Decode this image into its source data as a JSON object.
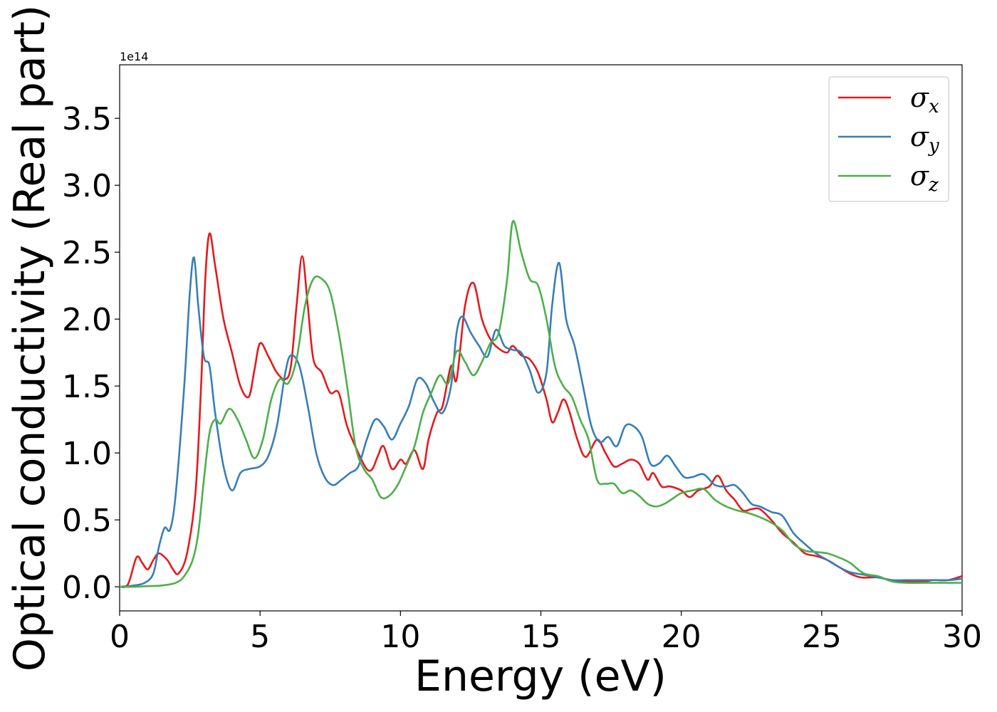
{
  "chart_data": {
    "type": "line",
    "xlabel": "Energy (eV)",
    "ylabel": "Optical conductivity (Real part)",
    "y_offset_text": "1e14",
    "y_scale": 100000000000000.0,
    "xlim": [
      0,
      30
    ],
    "ylim": [
      -0.18,
      3.9
    ],
    "x_ticks": [
      0,
      5,
      10,
      15,
      20,
      25,
      30
    ],
    "x_tick_labels": [
      "0",
      "5",
      "10",
      "15",
      "20",
      "25",
      "30"
    ],
    "y_ticks": [
      0.0,
      0.5,
      1.0,
      1.5,
      2.0,
      2.5,
      3.0,
      3.5
    ],
    "y_tick_labels": [
      "0.0",
      "0.5",
      "1.0",
      "1.5",
      "2.0",
      "2.5",
      "3.0",
      "3.5"
    ],
    "grid": false,
    "legend_position": "top-right",
    "series": [
      {
        "name": "σx",
        "legend_symbol": "σ",
        "legend_sub": "x",
        "color": "#e41a1c",
        "points": [
          [
            0,
            0
          ],
          [
            0.3,
            0.02
          ],
          [
            0.6,
            0.22
          ],
          [
            0.8,
            0.18
          ],
          [
            1.0,
            0.13
          ],
          [
            1.2,
            0.2
          ],
          [
            1.4,
            0.25
          ],
          [
            1.7,
            0.2
          ],
          [
            1.9,
            0.13
          ],
          [
            2.1,
            0.1
          ],
          [
            2.4,
            0.25
          ],
          [
            2.7,
            0.7
          ],
          [
            2.9,
            1.5
          ],
          [
            3.05,
            2.3
          ],
          [
            3.2,
            2.64
          ],
          [
            3.4,
            2.4
          ],
          [
            3.7,
            2.0
          ],
          [
            4.0,
            1.75
          ],
          [
            4.3,
            1.5
          ],
          [
            4.6,
            1.42
          ],
          [
            4.8,
            1.62
          ],
          [
            5.0,
            1.82
          ],
          [
            5.3,
            1.72
          ],
          [
            5.6,
            1.6
          ],
          [
            5.9,
            1.55
          ],
          [
            6.1,
            1.65
          ],
          [
            6.3,
            2.1
          ],
          [
            6.5,
            2.47
          ],
          [
            6.7,
            2.1
          ],
          [
            6.9,
            1.7
          ],
          [
            7.2,
            1.6
          ],
          [
            7.5,
            1.45
          ],
          [
            7.8,
            1.45
          ],
          [
            8.1,
            1.2
          ],
          [
            8.5,
            1.0
          ],
          [
            8.8,
            0.88
          ],
          [
            9.0,
            0.88
          ],
          [
            9.2,
            0.98
          ],
          [
            9.4,
            1.05
          ],
          [
            9.7,
            0.88
          ],
          [
            10.0,
            0.95
          ],
          [
            10.2,
            0.92
          ],
          [
            10.5,
            1.02
          ],
          [
            10.8,
            0.88
          ],
          [
            11.0,
            1.1
          ],
          [
            11.3,
            1.3
          ],
          [
            11.5,
            1.35
          ],
          [
            11.8,
            1.65
          ],
          [
            12.0,
            1.55
          ],
          [
            12.3,
            2.1
          ],
          [
            12.6,
            2.27
          ],
          [
            12.9,
            2.0
          ],
          [
            13.2,
            1.85
          ],
          [
            13.5,
            1.78
          ],
          [
            13.8,
            1.75
          ],
          [
            14.0,
            1.8
          ],
          [
            14.3,
            1.73
          ],
          [
            14.6,
            1.7
          ],
          [
            14.9,
            1.6
          ],
          [
            15.2,
            1.4
          ],
          [
            15.4,
            1.23
          ],
          [
            15.6,
            1.3
          ],
          [
            15.8,
            1.4
          ],
          [
            16.0,
            1.32
          ],
          [
            16.3,
            1.1
          ],
          [
            16.6,
            0.97
          ],
          [
            17.0,
            1.1
          ],
          [
            17.3,
            1.0
          ],
          [
            17.6,
            0.9
          ],
          [
            17.9,
            0.92
          ],
          [
            18.2,
            0.95
          ],
          [
            18.5,
            0.92
          ],
          [
            18.8,
            0.8
          ],
          [
            19.0,
            0.85
          ],
          [
            19.3,
            0.75
          ],
          [
            19.6,
            0.75
          ],
          [
            20.0,
            0.72
          ],
          [
            20.3,
            0.67
          ],
          [
            20.6,
            0.72
          ],
          [
            21.0,
            0.75
          ],
          [
            21.3,
            0.83
          ],
          [
            21.6,
            0.72
          ],
          [
            21.9,
            0.65
          ],
          [
            22.2,
            0.57
          ],
          [
            22.5,
            0.58
          ],
          [
            22.8,
            0.58
          ],
          [
            23.2,
            0.5
          ],
          [
            23.6,
            0.4
          ],
          [
            24.0,
            0.33
          ],
          [
            24.4,
            0.25
          ],
          [
            24.8,
            0.23
          ],
          [
            25.2,
            0.2
          ],
          [
            25.6,
            0.15
          ],
          [
            26.0,
            0.1
          ],
          [
            26.4,
            0.07
          ],
          [
            27.0,
            0.07
          ],
          [
            27.5,
            0.05
          ],
          [
            28.0,
            0.04
          ],
          [
            28.6,
            0.04
          ],
          [
            29.0,
            0.05
          ],
          [
            29.5,
            0.05
          ],
          [
            30.0,
            0.08
          ]
        ]
      },
      {
        "name": "σy",
        "legend_symbol": "σ",
        "legend_sub": "y",
        "color": "#377eb8",
        "points": [
          [
            0,
            0
          ],
          [
            0.5,
            0.01
          ],
          [
            0.9,
            0.03
          ],
          [
            1.2,
            0.1
          ],
          [
            1.4,
            0.3
          ],
          [
            1.6,
            0.44
          ],
          [
            1.8,
            0.43
          ],
          [
            2.0,
            0.7
          ],
          [
            2.3,
            1.5
          ],
          [
            2.5,
            2.2
          ],
          [
            2.65,
            2.46
          ],
          [
            2.8,
            2.1
          ],
          [
            3.0,
            1.72
          ],
          [
            3.2,
            1.65
          ],
          [
            3.4,
            1.3
          ],
          [
            3.7,
            0.9
          ],
          [
            4.0,
            0.72
          ],
          [
            4.3,
            0.85
          ],
          [
            4.6,
            0.88
          ],
          [
            5.0,
            0.9
          ],
          [
            5.3,
            0.98
          ],
          [
            5.6,
            1.2
          ],
          [
            5.9,
            1.6
          ],
          [
            6.1,
            1.73
          ],
          [
            6.4,
            1.65
          ],
          [
            6.7,
            1.35
          ],
          [
            7.0,
            1.0
          ],
          [
            7.3,
            0.82
          ],
          [
            7.6,
            0.76
          ],
          [
            7.9,
            0.8
          ],
          [
            8.2,
            0.85
          ],
          [
            8.5,
            0.9
          ],
          [
            8.8,
            1.1
          ],
          [
            9.1,
            1.25
          ],
          [
            9.4,
            1.2
          ],
          [
            9.7,
            1.1
          ],
          [
            10.0,
            1.22
          ],
          [
            10.3,
            1.35
          ],
          [
            10.6,
            1.55
          ],
          [
            10.9,
            1.52
          ],
          [
            11.2,
            1.38
          ],
          [
            11.5,
            1.3
          ],
          [
            11.8,
            1.5
          ],
          [
            12.0,
            1.9
          ],
          [
            12.2,
            2.02
          ],
          [
            12.5,
            1.9
          ],
          [
            12.8,
            1.8
          ],
          [
            13.1,
            1.72
          ],
          [
            13.4,
            1.92
          ],
          [
            13.7,
            1.8
          ],
          [
            14.0,
            1.77
          ],
          [
            14.3,
            1.75
          ],
          [
            14.6,
            1.62
          ],
          [
            14.9,
            1.45
          ],
          [
            15.2,
            1.6
          ],
          [
            15.4,
            2.1
          ],
          [
            15.65,
            2.42
          ],
          [
            15.9,
            2.0
          ],
          [
            16.2,
            1.8
          ],
          [
            16.5,
            1.5
          ],
          [
            16.8,
            1.2
          ],
          [
            17.1,
            1.08
          ],
          [
            17.4,
            1.12
          ],
          [
            17.7,
            1.05
          ],
          [
            18.0,
            1.2
          ],
          [
            18.3,
            1.2
          ],
          [
            18.6,
            1.12
          ],
          [
            18.9,
            0.92
          ],
          [
            19.2,
            0.92
          ],
          [
            19.5,
            0.98
          ],
          [
            19.8,
            0.9
          ],
          [
            20.1,
            0.82
          ],
          [
            20.4,
            0.82
          ],
          [
            20.8,
            0.84
          ],
          [
            21.2,
            0.76
          ],
          [
            21.6,
            0.75
          ],
          [
            21.9,
            0.76
          ],
          [
            22.2,
            0.7
          ],
          [
            22.5,
            0.62
          ],
          [
            22.8,
            0.6
          ],
          [
            23.2,
            0.56
          ],
          [
            23.6,
            0.53
          ],
          [
            24.0,
            0.4
          ],
          [
            24.4,
            0.32
          ],
          [
            24.8,
            0.25
          ],
          [
            25.2,
            0.2
          ],
          [
            25.6,
            0.15
          ],
          [
            26.0,
            0.11
          ],
          [
            26.5,
            0.09
          ],
          [
            27.0,
            0.07
          ],
          [
            27.5,
            0.05
          ],
          [
            28.0,
            0.05
          ],
          [
            28.5,
            0.05
          ],
          [
            29.0,
            0.05
          ],
          [
            29.5,
            0.05
          ],
          [
            30.0,
            0.06
          ]
        ]
      },
      {
        "name": "σz",
        "legend_symbol": "σ",
        "legend_sub": "z",
        "color": "#4daf4a",
        "points": [
          [
            0,
            0
          ],
          [
            0.5,
            0
          ],
          [
            1.0,
            0.005
          ],
          [
            1.5,
            0.01
          ],
          [
            2.0,
            0.03
          ],
          [
            2.3,
            0.08
          ],
          [
            2.6,
            0.2
          ],
          [
            2.8,
            0.4
          ],
          [
            3.0,
            0.8
          ],
          [
            3.2,
            1.15
          ],
          [
            3.4,
            1.25
          ],
          [
            3.6,
            1.22
          ],
          [
            3.9,
            1.33
          ],
          [
            4.2,
            1.25
          ],
          [
            4.5,
            1.1
          ],
          [
            4.8,
            0.96
          ],
          [
            5.1,
            1.1
          ],
          [
            5.4,
            1.4
          ],
          [
            5.7,
            1.55
          ],
          [
            6.0,
            1.52
          ],
          [
            6.3,
            1.7
          ],
          [
            6.6,
            2.1
          ],
          [
            6.9,
            2.3
          ],
          [
            7.2,
            2.3
          ],
          [
            7.5,
            2.2
          ],
          [
            7.8,
            1.9
          ],
          [
            8.1,
            1.5
          ],
          [
            8.4,
            1.05
          ],
          [
            8.7,
            0.88
          ],
          [
            9.0,
            0.8
          ],
          [
            9.3,
            0.67
          ],
          [
            9.6,
            0.68
          ],
          [
            9.9,
            0.76
          ],
          [
            10.2,
            0.9
          ],
          [
            10.5,
            1.05
          ],
          [
            10.8,
            1.3
          ],
          [
            11.1,
            1.45
          ],
          [
            11.4,
            1.58
          ],
          [
            11.7,
            1.52
          ],
          [
            12.0,
            1.76
          ],
          [
            12.3,
            1.68
          ],
          [
            12.6,
            1.58
          ],
          [
            12.9,
            1.68
          ],
          [
            13.2,
            1.82
          ],
          [
            13.5,
            1.9
          ],
          [
            13.8,
            2.3
          ],
          [
            14.0,
            2.73
          ],
          [
            14.3,
            2.5
          ],
          [
            14.6,
            2.3
          ],
          [
            14.9,
            2.25
          ],
          [
            15.2,
            2.0
          ],
          [
            15.5,
            1.65
          ],
          [
            15.8,
            1.5
          ],
          [
            16.1,
            1.42
          ],
          [
            16.4,
            1.25
          ],
          [
            16.7,
            1.1
          ],
          [
            17.0,
            0.8
          ],
          [
            17.3,
            0.77
          ],
          [
            17.6,
            0.77
          ],
          [
            17.9,
            0.7
          ],
          [
            18.2,
            0.72
          ],
          [
            18.5,
            0.68
          ],
          [
            18.8,
            0.62
          ],
          [
            19.1,
            0.6
          ],
          [
            19.4,
            0.62
          ],
          [
            19.7,
            0.66
          ],
          [
            20.0,
            0.7
          ],
          [
            20.4,
            0.72
          ],
          [
            20.8,
            0.73
          ],
          [
            21.2,
            0.65
          ],
          [
            21.6,
            0.6
          ],
          [
            22.0,
            0.57
          ],
          [
            22.4,
            0.55
          ],
          [
            22.8,
            0.52
          ],
          [
            23.2,
            0.48
          ],
          [
            23.6,
            0.42
          ],
          [
            24.0,
            0.32
          ],
          [
            24.4,
            0.27
          ],
          [
            24.8,
            0.26
          ],
          [
            25.2,
            0.25
          ],
          [
            25.6,
            0.22
          ],
          [
            26.0,
            0.18
          ],
          [
            26.5,
            0.1
          ],
          [
            27.0,
            0.08
          ],
          [
            27.5,
            0.04
          ],
          [
            28.0,
            0.03
          ],
          [
            29.0,
            0.03
          ],
          [
            30.0,
            0.03
          ]
        ]
      }
    ]
  }
}
